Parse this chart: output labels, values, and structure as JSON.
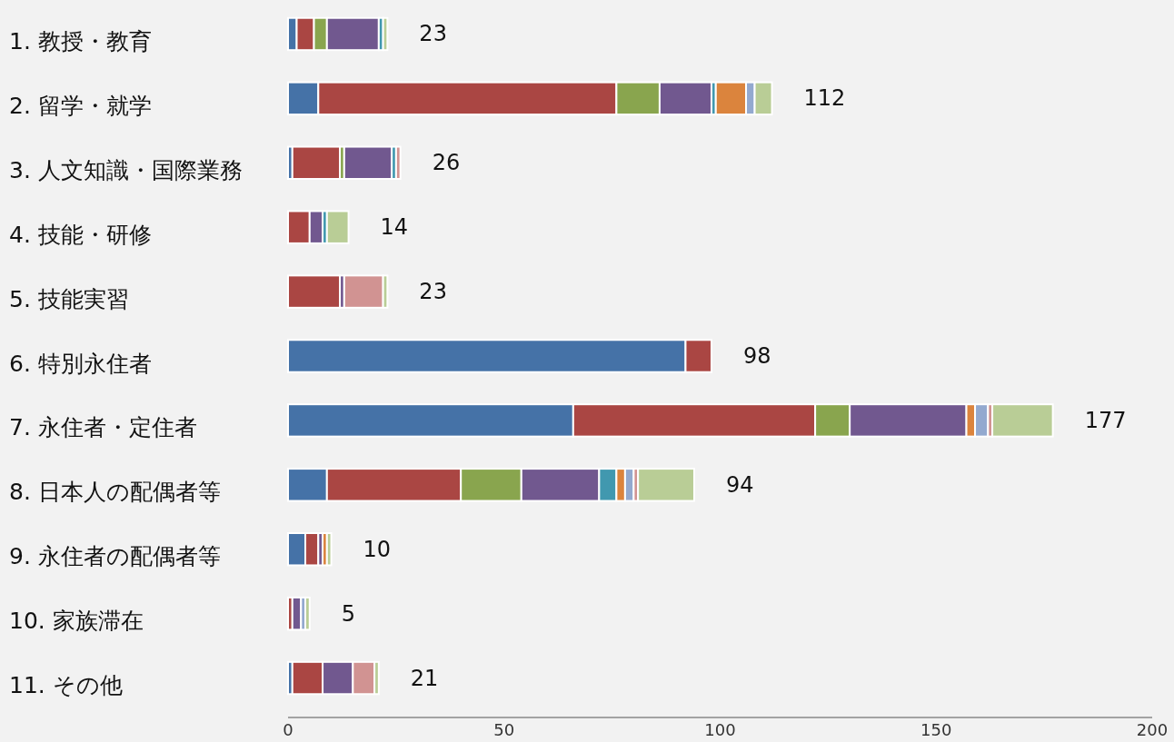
{
  "chart_data": {
    "type": "bar",
    "orientation": "horizontal",
    "stacked": true,
    "categories": [
      "1. 教授・教育",
      "2. 留学・就学",
      "3. 人文知識・国際業務",
      "4. 技能・研修",
      "5. 技能実習",
      "6. 特別永住者",
      "7. 永住者・定住者",
      "8. 日本人の配偶者等",
      "9. 永住者の配偶者等",
      "10. 家族滞在",
      "11. その他"
    ],
    "series": [
      {
        "color": "#4572a7",
        "values": [
          2,
          7,
          1,
          0,
          0,
          92,
          66,
          9,
          4,
          0,
          1
        ]
      },
      {
        "color": "#aa4643",
        "values": [
          4,
          69,
          11,
          5,
          12,
          6,
          56,
          31,
          3,
          1,
          7
        ]
      },
      {
        "color": "#89a54e",
        "values": [
          3,
          10,
          1,
          0,
          0,
          0,
          8,
          14,
          0,
          0,
          0
        ]
      },
      {
        "color": "#71588f",
        "values": [
          12,
          12,
          11,
          3,
          1,
          0,
          27,
          18,
          1,
          2,
          7
        ]
      },
      {
        "color": "#4198af",
        "values": [
          1,
          1,
          1,
          1,
          0,
          0,
          0,
          4,
          0,
          0,
          0
        ]
      },
      {
        "color": "#db843d",
        "values": [
          0,
          7,
          0,
          0,
          0,
          0,
          2,
          2,
          1,
          0,
          0
        ]
      },
      {
        "color": "#93a9cf",
        "values": [
          0,
          2,
          0,
          0,
          0,
          0,
          3,
          2,
          0,
          1,
          0
        ]
      },
      {
        "color": "#d19392",
        "values": [
          0,
          0,
          1,
          0,
          9,
          0,
          1,
          1,
          0,
          0,
          5
        ]
      },
      {
        "color": "#b9cd96",
        "values": [
          1,
          4,
          0,
          5,
          1,
          0,
          14,
          13,
          1,
          1,
          1
        ]
      }
    ],
    "totals": [
      "23",
      "112",
      "26",
      "14",
      "23",
      "98",
      "177",
      "94",
      "10",
      "5",
      "21"
    ],
    "xlim": [
      0,
      200
    ],
    "xticks": [
      0,
      50,
      100,
      150,
      200
    ]
  }
}
